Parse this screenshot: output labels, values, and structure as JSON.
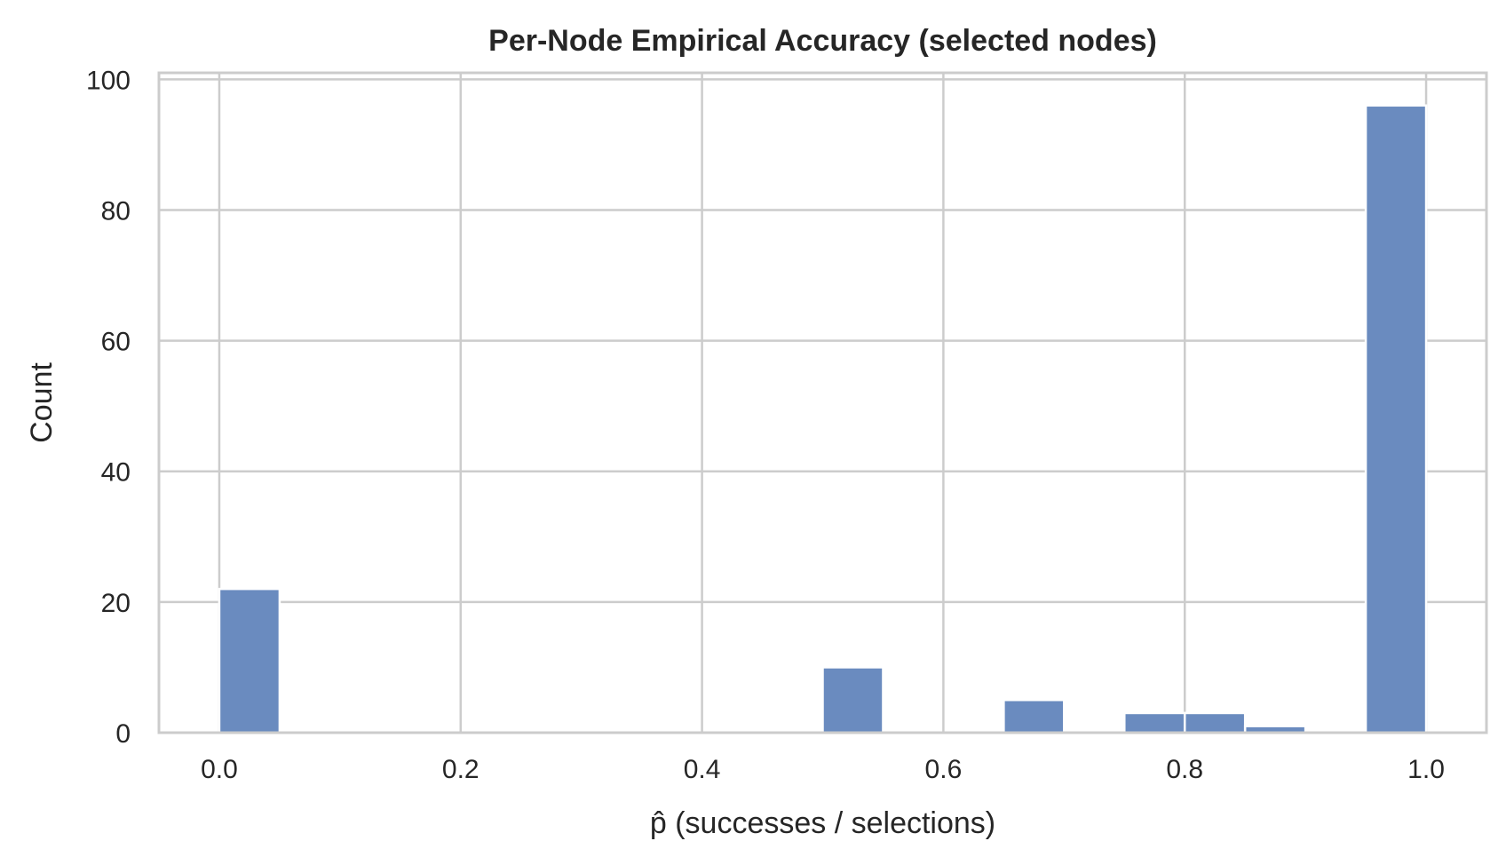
{
  "chart_data": {
    "type": "bar",
    "title": "Per-Node Empirical Accuracy (selected nodes)",
    "xlabel": "p̂ (successes / selections)",
    "ylabel": "Count",
    "xlim": [
      -0.05,
      1.05
    ],
    "ylim": [
      0,
      101
    ],
    "xticks": [
      0.0,
      0.2,
      0.4,
      0.6,
      0.8,
      1.0
    ],
    "xtick_labels": [
      "0.0",
      "0.2",
      "0.4",
      "0.6",
      "0.8",
      "1.0"
    ],
    "yticks": [
      0,
      20,
      40,
      60,
      80,
      100
    ],
    "ytick_labels": [
      "0",
      "20",
      "40",
      "60",
      "80",
      "100"
    ],
    "bin_width": 0.05,
    "bins": [
      {
        "x0": 0.0,
        "count": 22
      },
      {
        "x0": 0.5,
        "count": 10
      },
      {
        "x0": 0.65,
        "count": 5
      },
      {
        "x0": 0.75,
        "count": 3
      },
      {
        "x0": 0.8,
        "count": 3
      },
      {
        "x0": 0.85,
        "count": 1
      },
      {
        "x0": 0.95,
        "count": 96
      }
    ],
    "grid": true,
    "bar_color": "#6a8bbf"
  }
}
